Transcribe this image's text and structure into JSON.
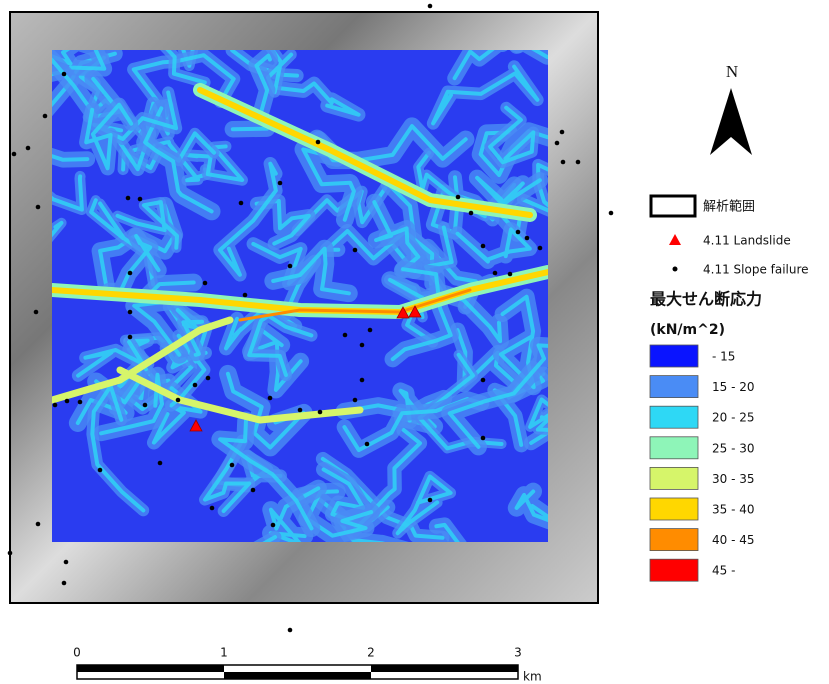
{
  "north_label": "N",
  "legend": {
    "boundary": "解析範囲",
    "landslide": "4.11 Landslide",
    "slope_failure": "4.11 Slope failure",
    "title": "最大せん断応力",
    "unit": "(kN/m^2)",
    "classes": [
      {
        "label": "- 15",
        "color": "#0a14ff"
      },
      {
        "label": "15 - 20",
        "color": "#4a8cf5"
      },
      {
        "label": "20 - 25",
        "color": "#2ed8f5"
      },
      {
        "label": "25 - 30",
        "color": "#8ef5b8"
      },
      {
        "label": "30 - 35",
        "color": "#d6f56a"
      },
      {
        "label": "35 - 40",
        "color": "#ffd700"
      },
      {
        "label": "40 - 45",
        "color": "#ff8c00"
      },
      {
        "label": "45 -",
        "color": "#ff0000"
      }
    ]
  },
  "scale_bar": {
    "ticks": [
      "0",
      "1",
      "2",
      "3"
    ],
    "unit": "km"
  }
}
